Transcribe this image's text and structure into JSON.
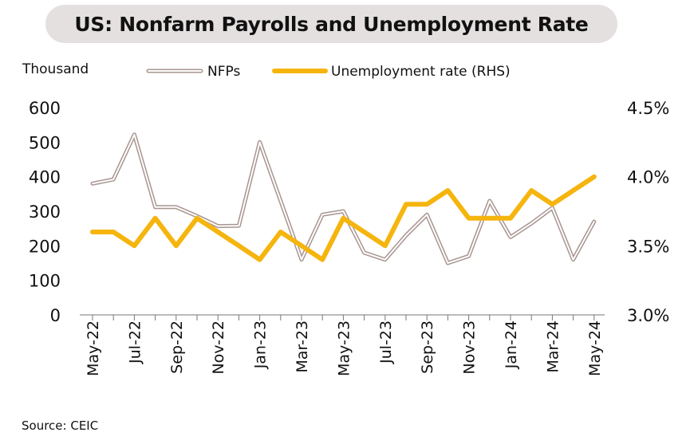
{
  "chart_data": {
    "type": "line",
    "title": "US: Nonfarm Payrolls and Unemployment Rate",
    "left_axis_unit": "Thousand",
    "categories": [
      "May-22",
      "Jun-22",
      "Jul-22",
      "Aug-22",
      "Sep-22",
      "Oct-22",
      "Nov-22",
      "Dec-22",
      "Jan-23",
      "Feb-23",
      "Mar-23",
      "Apr-23",
      "May-23",
      "Jun-23",
      "Jul-23",
      "Aug-23",
      "Sep-23",
      "Oct-23",
      "Nov-23",
      "Dec-23",
      "Jan-24",
      "Feb-24",
      "Mar-24",
      "Apr-24",
      "May-24"
    ],
    "x_tick_labels": [
      "May-22",
      "Jul-22",
      "Sep-22",
      "Nov-22",
      "Jan-23",
      "Mar-23",
      "May-23",
      "Jul-23",
      "Sep-23",
      "Nov-23",
      "Jan-24",
      "Mar-24",
      "May-24"
    ],
    "series": [
      {
        "name": "NFPs",
        "axis": "left",
        "style": "double-line",
        "color": "#a89590",
        "values": [
          380,
          392,
          522,
          312,
          312,
          286,
          257,
          258,
          500,
          330,
          160,
          290,
          300,
          180,
          160,
          230,
          290,
          150,
          170,
          330,
          225,
          265,
          310,
          160,
          270
        ]
      },
      {
        "name": "Unemployment rate (RHS)",
        "axis": "right",
        "style": "thick-line",
        "color": "#f5b50e",
        "values": [
          3.6,
          3.6,
          3.5,
          3.7,
          3.5,
          3.7,
          3.6,
          3.5,
          3.4,
          3.6,
          3.5,
          3.4,
          3.7,
          3.6,
          3.5,
          3.8,
          3.8,
          3.9,
          3.7,
          3.7,
          3.7,
          3.9,
          3.8,
          3.9,
          4.0
        ]
      }
    ],
    "y_left": {
      "ylim": [
        0,
        600
      ],
      "ticks": [
        "0",
        "100",
        "200",
        "300",
        "400",
        "500",
        "600"
      ]
    },
    "y_right": {
      "ylim": [
        3.0,
        4.5
      ],
      "ticks": [
        "3.0%",
        "3.5%",
        "4.0%",
        "4.5%"
      ]
    },
    "legend_position": "top",
    "grid": false
  },
  "source": "Source: CEIC"
}
